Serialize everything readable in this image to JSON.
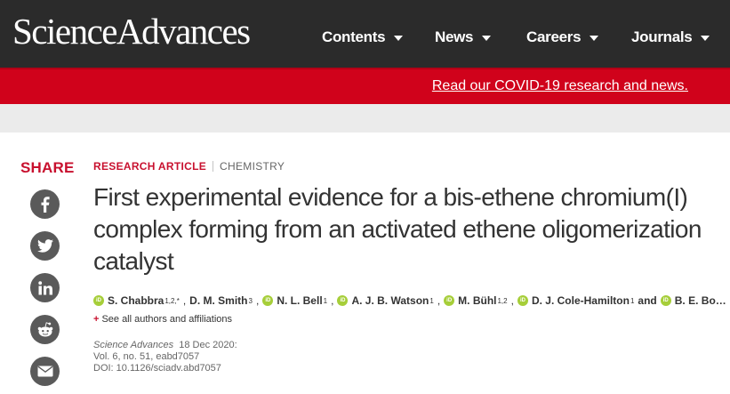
{
  "header": {
    "logo_text": "ScienceAdvances",
    "nav": [
      {
        "label": "Contents"
      },
      {
        "label": "News"
      },
      {
        "label": "Careers"
      },
      {
        "label": "Journals"
      }
    ]
  },
  "banner": {
    "link_text": "Read our COVID-19 research and news."
  },
  "share": {
    "label": "SHARE",
    "buttons": [
      "facebook-icon",
      "twitter-icon",
      "linkedin-icon",
      "reddit-icon",
      "email-icon"
    ]
  },
  "article": {
    "type": "RESEARCH ARTICLE",
    "subject": "CHEMISTRY",
    "title": "First experimental evidence for a bis-ethene chromium(I) complex forming from an activated ethene oligomerization catalyst",
    "authors": [
      {
        "name": "S. Chabbra",
        "sup": "1,2,*"
      },
      {
        "name": "D. M. Smith",
        "sup": "3"
      },
      {
        "name": "N. L. Bell",
        "sup": "1"
      },
      {
        "name": "A. J. B. Watson",
        "sup": "1"
      },
      {
        "name": "M. Bühl",
        "sup": "1,2"
      },
      {
        "name": "D. J. Cole-Hamilton",
        "sup": "1"
      },
      {
        "name": "B. E. Bo…",
        "sup": ""
      }
    ],
    "and_text": "and",
    "see_all": "See all authors and affiliations",
    "citation": {
      "journal": "Science Advances",
      "date": "18 Dec 2020:",
      "volume": "Vol. 6, no. 51, eabd7057",
      "doi": "DOI: 10.1126/sciadv.abd7057"
    }
  },
  "colors": {
    "header_bg": "#2b2b2b",
    "banner_red": "#d0021b",
    "accent_red": "#c8102e",
    "orcid_green": "#a6ce39"
  }
}
